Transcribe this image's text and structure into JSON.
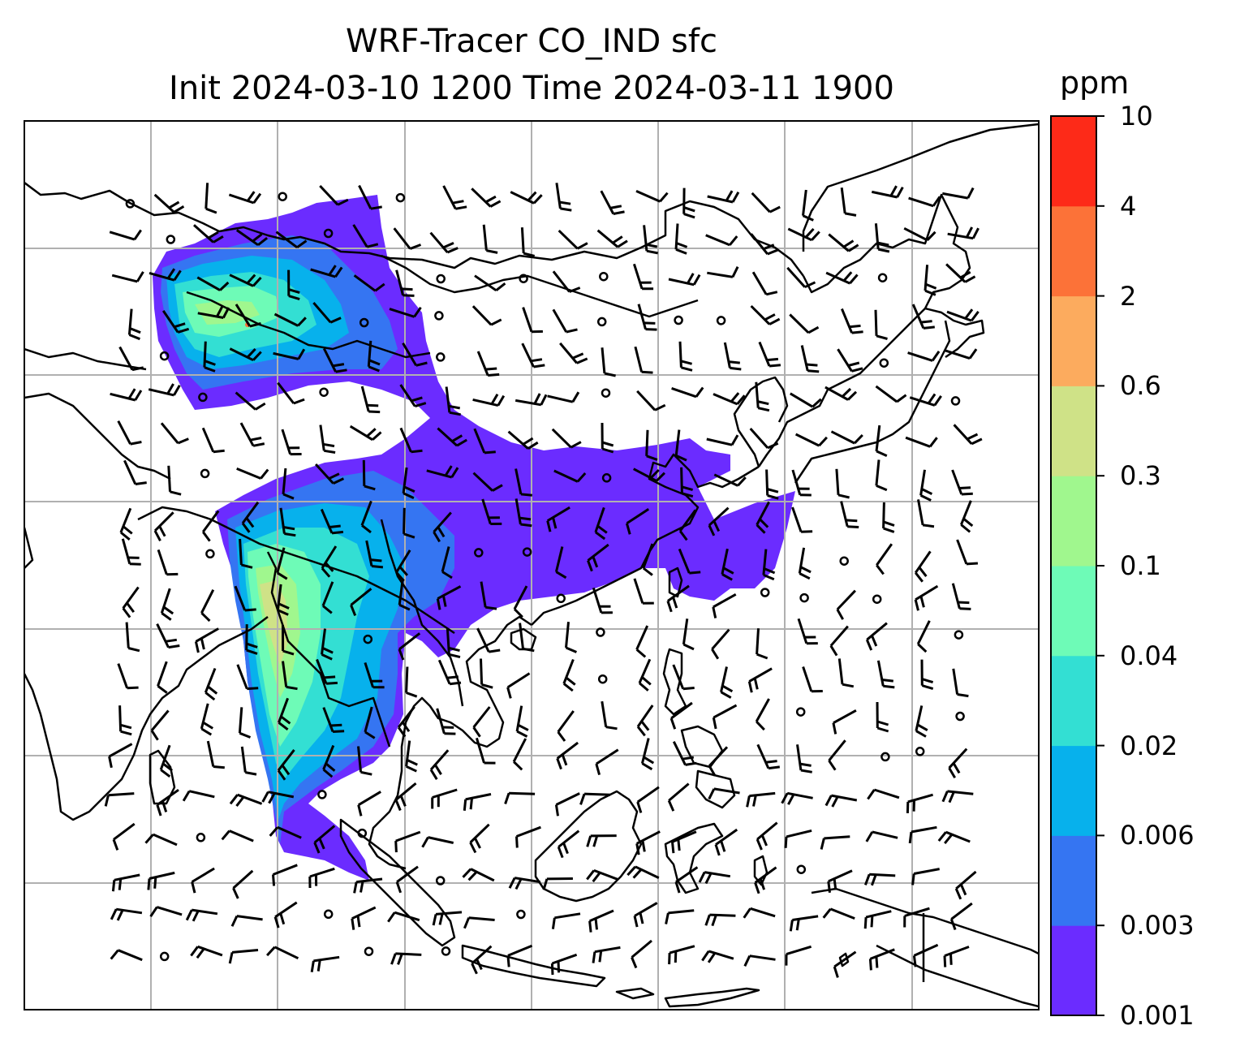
{
  "title": {
    "line1": "WRF-Tracer CO_IND sfc",
    "line2": "Init 2024-03-10 1200 Time 2024-03-11 1900"
  },
  "colorbar": {
    "unit": "ppm",
    "levels": [
      "0.001",
      "0.003",
      "0.006",
      "0.02",
      "0.04",
      "0.1",
      "0.3",
      "0.6",
      "2",
      "4",
      "10"
    ],
    "colors": [
      "#6b2cff",
      "#3575f2",
      "#07b1ec",
      "#33dfd3",
      "#6efbb7",
      "#a0f78e",
      "#cfe287",
      "#fcab5e",
      "#fc7238",
      "#fd2a18"
    ]
  },
  "map": {
    "gridlines": "light gray",
    "coastline_color": "#000000",
    "barb_color": "#000000"
  }
}
